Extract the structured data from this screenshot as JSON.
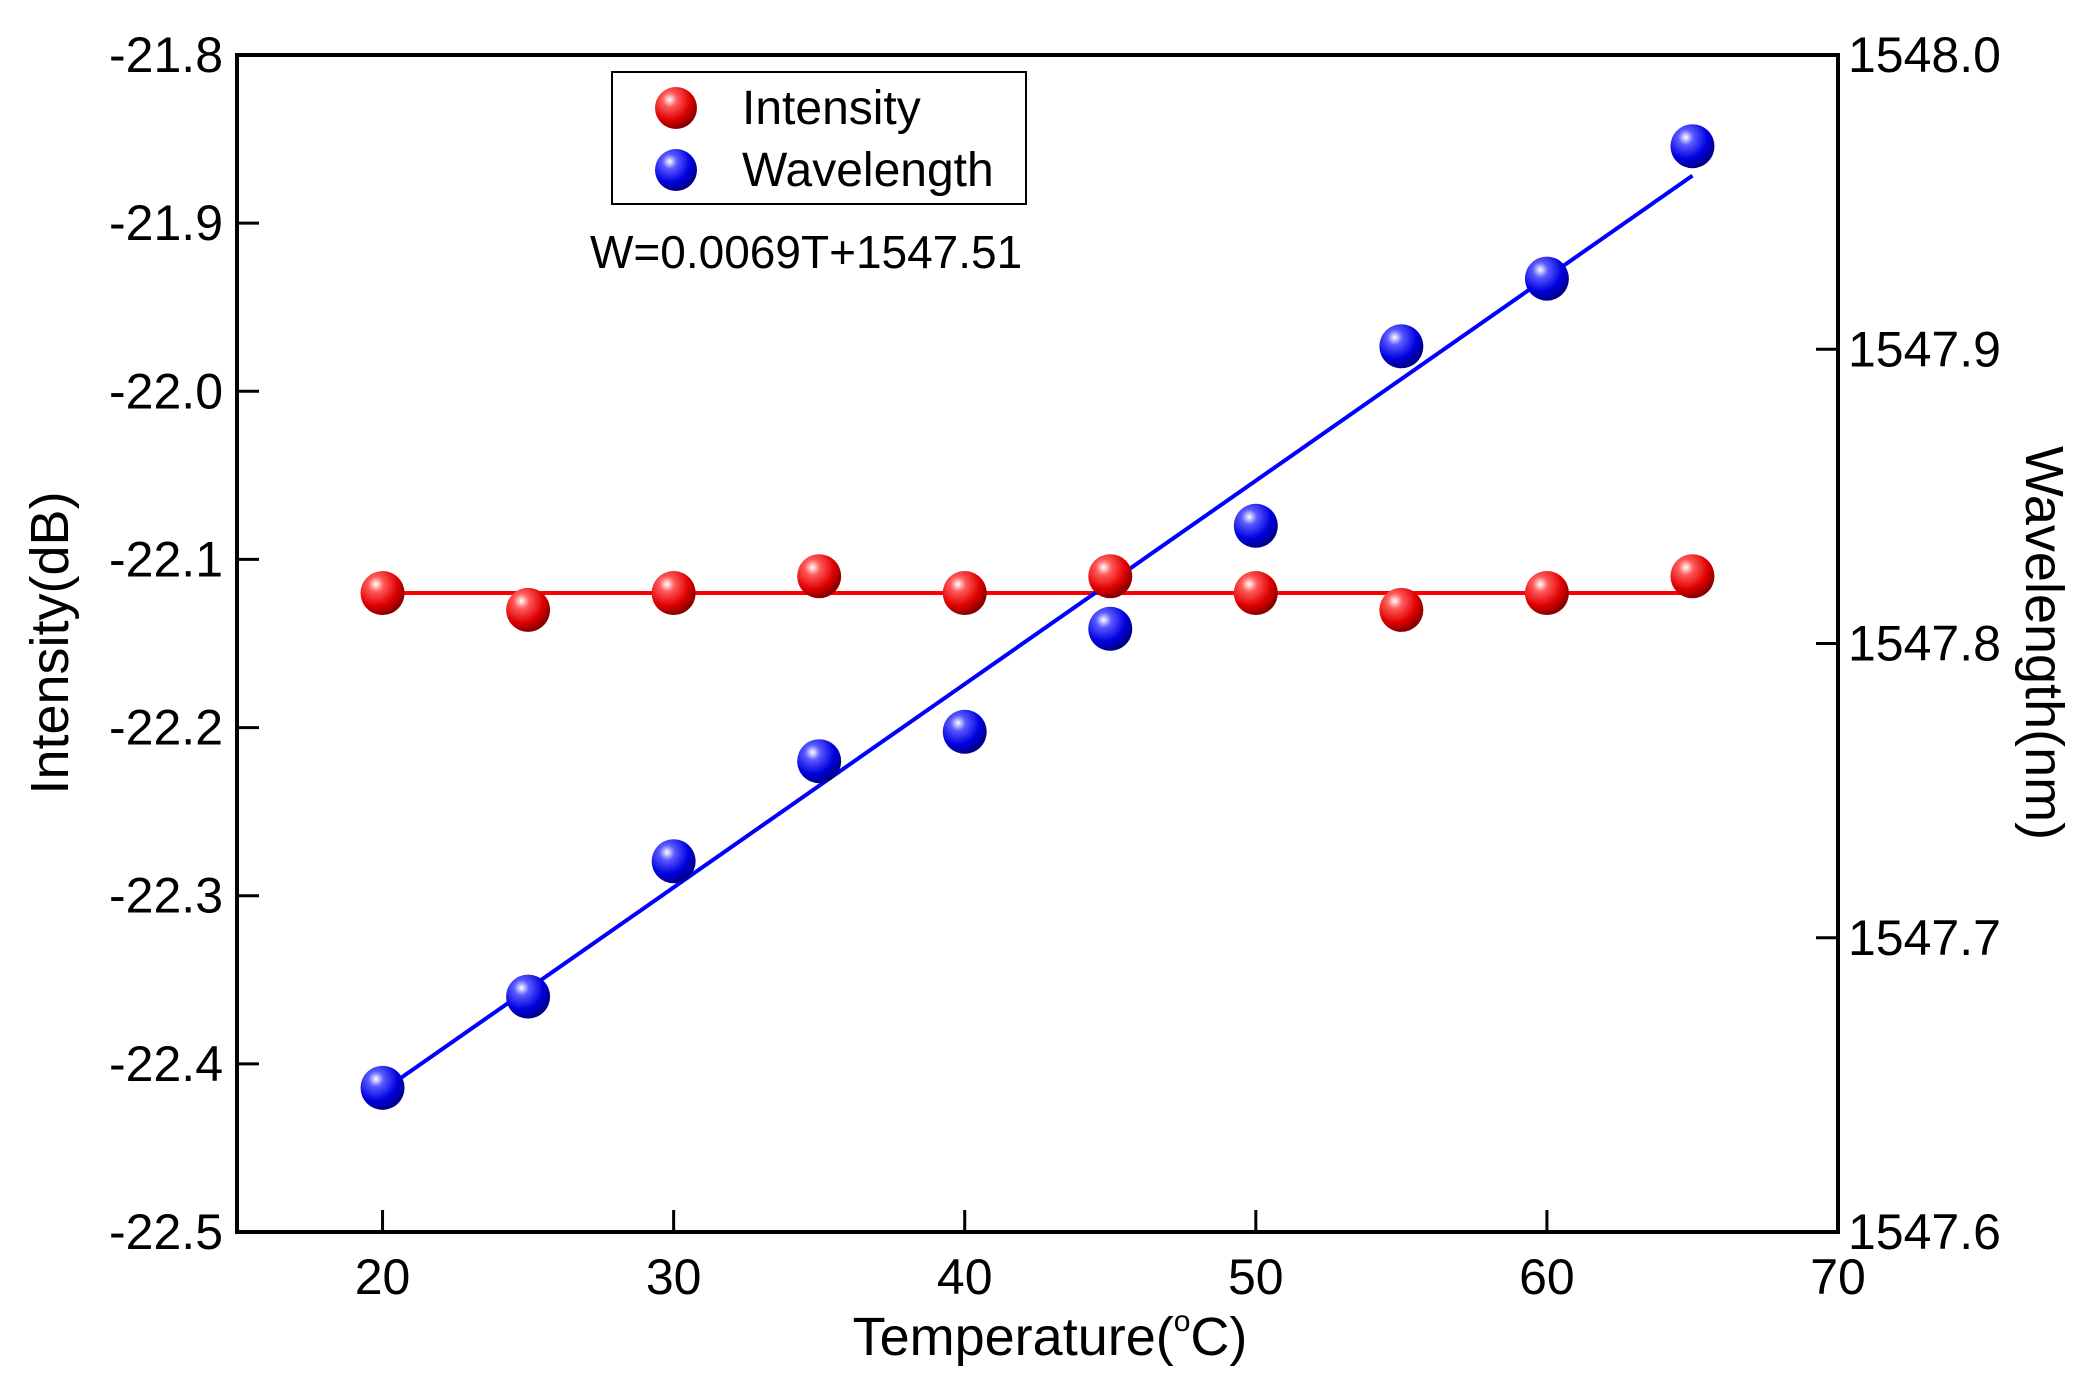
{
  "chart_data": {
    "type": "scatter",
    "title": "",
    "xlabel": "Temperature(",
    "xlabel_degree": "o",
    "xlabel_unit": "C)",
    "ylabel_left": "Intensity(dB)",
    "ylabel_right": "Wavelength(nm)",
    "xlim": [
      15,
      70
    ],
    "ylim_left": [
      -22.5,
      -21.8
    ],
    "ylim_right": [
      1547.6,
      1548.0
    ],
    "x_ticks": [
      20,
      30,
      40,
      50,
      60,
      70
    ],
    "x_tick_labels": [
      "20",
      "30",
      "40",
      "50",
      "60",
      "70"
    ],
    "y_left_ticks": [
      -21.8,
      -21.9,
      -22.0,
      -22.1,
      -22.2,
      -22.3,
      -22.4,
      -22.5
    ],
    "y_left_tick_labels": [
      "-21.8",
      "-21.9",
      "-22.0",
      "-22.1",
      "-22.2",
      "-22.3",
      "-22.4",
      "-22.5"
    ],
    "y_right_ticks": [
      1548.0,
      1547.9,
      1547.8,
      1547.7,
      1547.6
    ],
    "y_right_tick_labels": [
      "1548.0",
      "1547.9",
      "1547.8",
      "1547.7",
      "1547.6"
    ],
    "grid": false,
    "legend_position": "top-center",
    "series": [
      {
        "name": "Intensity",
        "axis": "left",
        "color": "#ff0000",
        "x": [
          20,
          25,
          30,
          35,
          40,
          45,
          50,
          55,
          60,
          65
        ],
        "values": [
          -22.12,
          -22.13,
          -22.12,
          -22.11,
          -22.12,
          -22.11,
          -22.12,
          -22.13,
          -22.12,
          -22.11
        ],
        "fit_line": {
          "x": [
            20,
            65
          ],
          "y": [
            -22.12,
            -22.12
          ]
        }
      },
      {
        "name": "Wavelength",
        "axis": "right",
        "color": "#0000ff",
        "x": [
          20,
          25,
          30,
          35,
          40,
          45,
          50,
          55,
          60,
          65
        ],
        "values": [
          1547.649,
          1547.68,
          1547.726,
          1547.76,
          1547.77,
          1547.805,
          1547.84,
          1547.901,
          1547.924,
          1547.969
        ],
        "fit_line": {
          "x": [
            20,
            65
          ],
          "y": [
            1547.648,
            1547.959
          ]
        }
      }
    ],
    "annotation": "W=0.0069T+1547.51"
  }
}
